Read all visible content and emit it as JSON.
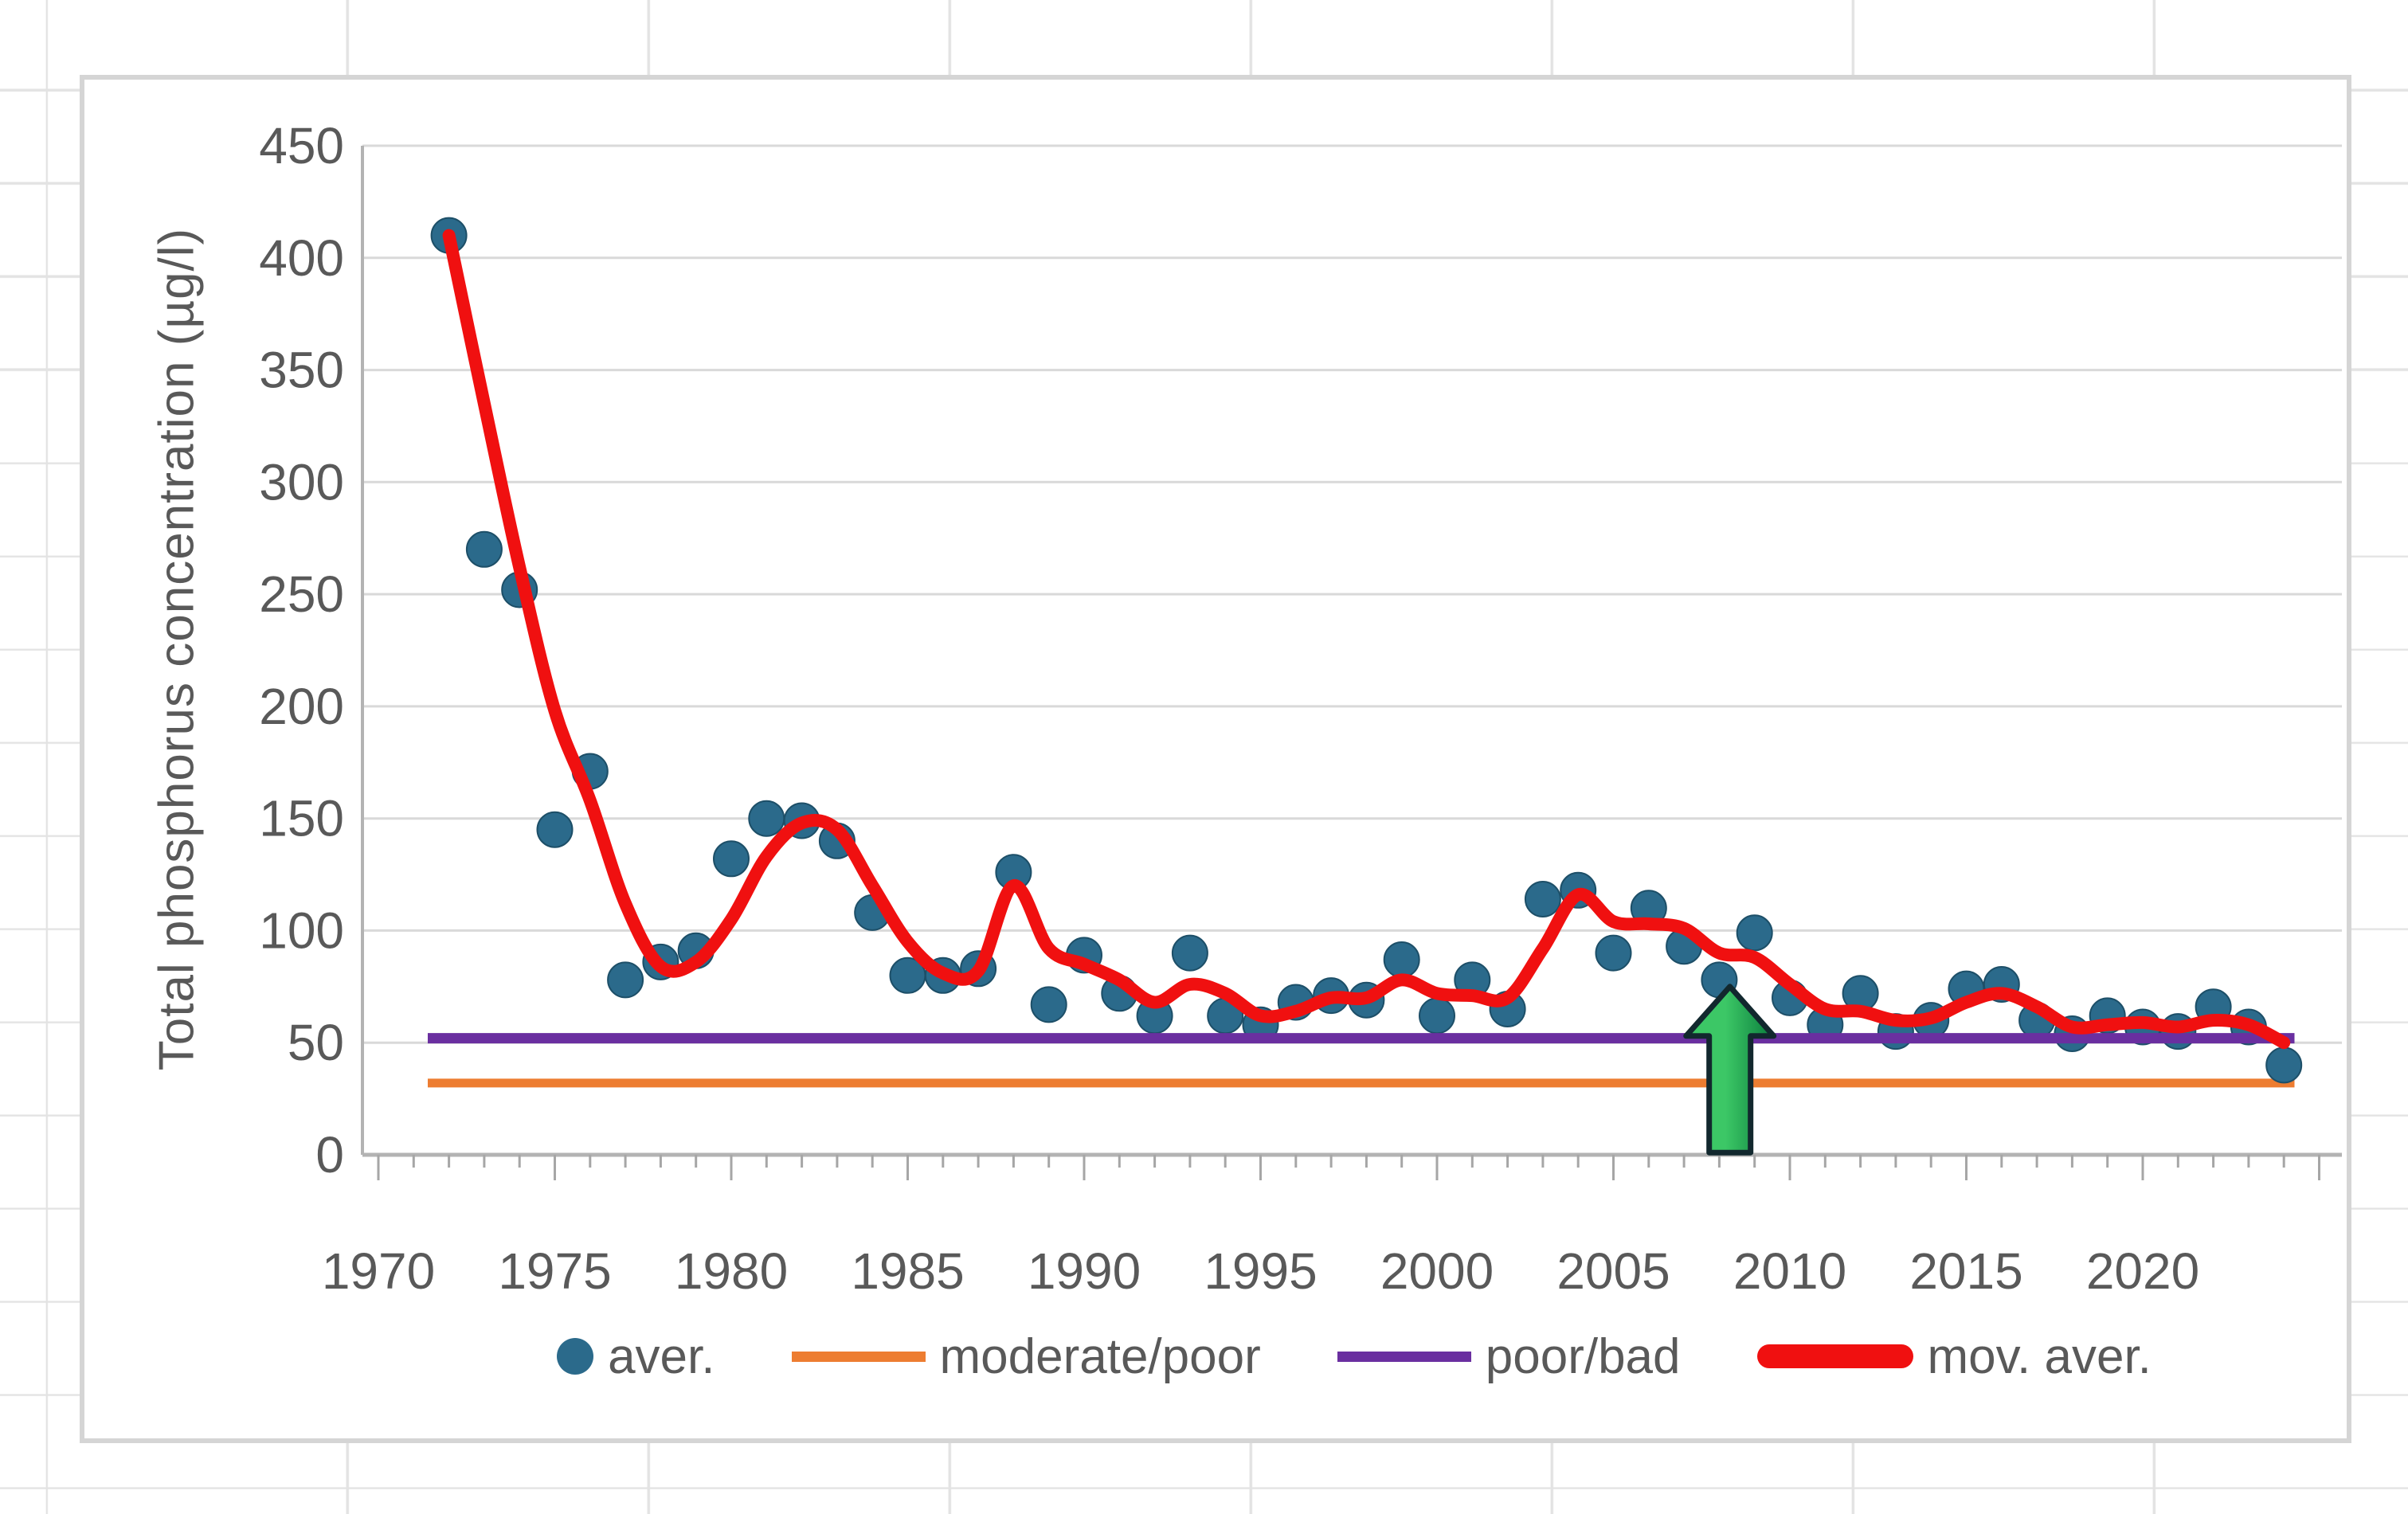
{
  "chart": {
    "y_axis_title": "Total phosphorus concentration (µg/l)",
    "axis_text_color": "#595959",
    "gridline_color": "#d9d9d9",
    "axis_line_color": "#b3b3b3",
    "tick_color": "#a6a6a6"
  },
  "legend": {
    "items": [
      {
        "label": "aver.",
        "marker": "dot",
        "color": "#2b6a8b"
      },
      {
        "label": "moderate/poor",
        "marker": "line",
        "color": "#ed7d31"
      },
      {
        "label": "poor/bad",
        "marker": "line",
        "color": "#6a2fa0"
      },
      {
        "label": "mov. aver.",
        "marker": "thick-line",
        "color": "#f01010"
      }
    ]
  },
  "chart_data": {
    "type": "scatter",
    "title": "",
    "xlabel": "",
    "ylabel": "Total phosphorus concentration (µg/l)",
    "xlim": [
      1970,
      2025.5
    ],
    "ylim": [
      0,
      450
    ],
    "x_ticks": [
      1970,
      1975,
      1980,
      1985,
      1990,
      1995,
      2000,
      2005,
      2010,
      2015,
      2020
    ],
    "y_ticks": [
      0,
      50,
      100,
      150,
      200,
      250,
      300,
      350,
      400,
      450
    ],
    "grid": "horizontal",
    "legend_position": "bottom",
    "years": [
      1972,
      1973,
      1974,
      1975,
      1976,
      1977,
      1978,
      1979,
      1980,
      1981,
      1982,
      1983,
      1984,
      1985,
      1986,
      1987,
      1988,
      1989,
      1990,
      1991,
      1992,
      1993,
      1994,
      1995,
      1996,
      1997,
      1998,
      1999,
      2000,
      2001,
      2002,
      2003,
      2004,
      2005,
      2006,
      2007,
      2008,
      2009,
      2010,
      2011,
      2012,
      2013,
      2014,
      2015,
      2016,
      2017,
      2018,
      2019,
      2020,
      2021,
      2022,
      2023,
      2024
    ],
    "series": [
      {
        "name": "aver.",
        "type": "scatter",
        "color": "#2b6a8b",
        "values": [
          410,
          270,
          252,
          145,
          171,
          78,
          86,
          91,
          132,
          150,
          149,
          140,
          108,
          80,
          80,
          83,
          126,
          67,
          89,
          72,
          62,
          90,
          62,
          58,
          68,
          71,
          69,
          87,
          62,
          78,
          65,
          114,
          118,
          90,
          110,
          93,
          78,
          99,
          70,
          58,
          72,
          55,
          60,
          74,
          76,
          60,
          54,
          62,
          57,
          55,
          66,
          57,
          40
        ]
      },
      {
        "name": "moderate/poor",
        "type": "hline",
        "color": "#ed7d31",
        "value": 32,
        "x_start": 1971.4,
        "x_end": 2024.3
      },
      {
        "name": "poor/bad",
        "type": "hline",
        "color": "#6a2fa0",
        "value": 52,
        "x_start": 1971.4,
        "x_end": 2024.3
      },
      {
        "name": "mov. aver.",
        "type": "line",
        "color": "#f01010",
        "values": [
          410,
          335,
          262,
          198,
          158,
          112,
          84,
          86,
          105,
          133,
          148,
          145,
          120,
          95,
          81,
          82,
          120,
          92,
          85,
          78,
          68,
          76,
          72,
          62,
          64,
          70,
          70,
          78,
          72,
          71,
          70,
          92,
          116,
          104,
          103,
          101,
          90,
          88,
          76,
          65,
          64,
          60,
          61,
          68,
          72,
          66,
          57,
          58,
          59,
          57,
          60,
          58,
          50
        ]
      }
    ],
    "annotations": [
      {
        "type": "up-arrow",
        "x": 2008.3,
        "y_tip": 75,
        "y_base": 1,
        "fill_light": "#3cc766",
        "fill_dark": "#0a7d3c",
        "outline": "#12282e"
      }
    ]
  }
}
